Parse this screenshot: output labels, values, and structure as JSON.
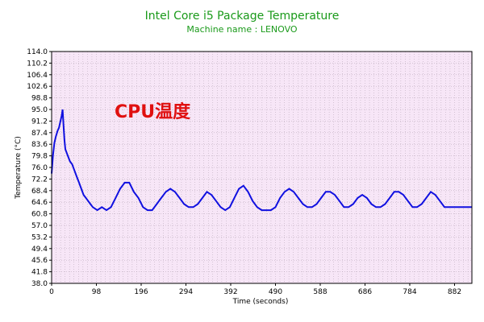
{
  "chart_data": {
    "type": "line",
    "title": "Intel Core i5 Package Temperature",
    "subtitle": "Machine name : LENOVO",
    "xlabel": "Time (seconds)",
    "ylabel": "Temperature (°C)",
    "annotation": "CPU温度",
    "xlim": [
      0,
      920
    ],
    "ylim": [
      38.0,
      114.0
    ],
    "x_ticks": [
      0,
      98,
      196,
      294,
      392,
      490,
      588,
      686,
      784,
      882
    ],
    "y_ticks": [
      "114.0",
      "110.2",
      "106.4",
      "102.6",
      "98.8",
      "95.0",
      "91.2",
      "87.4",
      "83.6",
      "79.8",
      "76.0",
      "72.2",
      "68.4",
      "64.6",
      "60.8",
      "57.0",
      "53.2",
      "49.4",
      "45.6",
      "41.8",
      "38.0"
    ],
    "grid": true,
    "legend": "none",
    "colors": {
      "line": "#1010e0",
      "plot_bg": "#f7e6f7",
      "grid": "#b0a0b0",
      "title": "#1a9a1a",
      "annotation": "#e01010"
    },
    "series": [
      {
        "points": [
          [
            0,
            74
          ],
          [
            3,
            80
          ],
          [
            6,
            84
          ],
          [
            9,
            86
          ],
          [
            13,
            88
          ],
          [
            16,
            89
          ],
          [
            19,
            91
          ],
          [
            22,
            93
          ],
          [
            24,
            95
          ],
          [
            26,
            90
          ],
          [
            28,
            85
          ],
          [
            30,
            82
          ],
          [
            35,
            80
          ],
          [
            40,
            78
          ],
          [
            45,
            77
          ],
          [
            50,
            75
          ],
          [
            55,
            73
          ],
          [
            60,
            71
          ],
          [
            65,
            69
          ],
          [
            70,
            67
          ],
          [
            75,
            66
          ],
          [
            80,
            65
          ],
          [
            85,
            64
          ],
          [
            90,
            63
          ],
          [
            100,
            62
          ],
          [
            110,
            63
          ],
          [
            120,
            62
          ],
          [
            130,
            63
          ],
          [
            140,
            66
          ],
          [
            150,
            69
          ],
          [
            160,
            71
          ],
          [
            170,
            71
          ],
          [
            180,
            68
          ],
          [
            190,
            66
          ],
          [
            200,
            63
          ],
          [
            210,
            62
          ],
          [
            220,
            62
          ],
          [
            230,
            64
          ],
          [
            240,
            66
          ],
          [
            250,
            68
          ],
          [
            260,
            69
          ],
          [
            270,
            68
          ],
          [
            280,
            66
          ],
          [
            290,
            64
          ],
          [
            300,
            63
          ],
          [
            310,
            63
          ],
          [
            320,
            64
          ],
          [
            330,
            66
          ],
          [
            340,
            68
          ],
          [
            350,
            67
          ],
          [
            360,
            65
          ],
          [
            370,
            63
          ],
          [
            380,
            62
          ],
          [
            390,
            63
          ],
          [
            400,
            66
          ],
          [
            410,
            69
          ],
          [
            420,
            70
          ],
          [
            430,
            68
          ],
          [
            440,
            65
          ],
          [
            450,
            63
          ],
          [
            460,
            62
          ],
          [
            470,
            62
          ],
          [
            480,
            62
          ],
          [
            490,
            63
          ],
          [
            500,
            66
          ],
          [
            510,
            68
          ],
          [
            520,
            69
          ],
          [
            530,
            68
          ],
          [
            540,
            66
          ],
          [
            550,
            64
          ],
          [
            560,
            63
          ],
          [
            570,
            63
          ],
          [
            580,
            64
          ],
          [
            590,
            66
          ],
          [
            600,
            68
          ],
          [
            610,
            68
          ],
          [
            620,
            67
          ],
          [
            630,
            65
          ],
          [
            640,
            63
          ],
          [
            650,
            63
          ],
          [
            660,
            64
          ],
          [
            670,
            66
          ],
          [
            680,
            67
          ],
          [
            690,
            66
          ],
          [
            700,
            64
          ],
          [
            710,
            63
          ],
          [
            720,
            63
          ],
          [
            730,
            64
          ],
          [
            740,
            66
          ],
          [
            750,
            68
          ],
          [
            760,
            68
          ],
          [
            770,
            67
          ],
          [
            780,
            65
          ],
          [
            790,
            63
          ],
          [
            800,
            63
          ],
          [
            810,
            64
          ],
          [
            820,
            66
          ],
          [
            830,
            68
          ],
          [
            840,
            67
          ],
          [
            850,
            65
          ],
          [
            860,
            63
          ],
          [
            870,
            63
          ],
          [
            880,
            63
          ],
          [
            890,
            63
          ],
          [
            900,
            63
          ],
          [
            910,
            63
          ],
          [
            920,
            63
          ]
        ]
      }
    ]
  }
}
